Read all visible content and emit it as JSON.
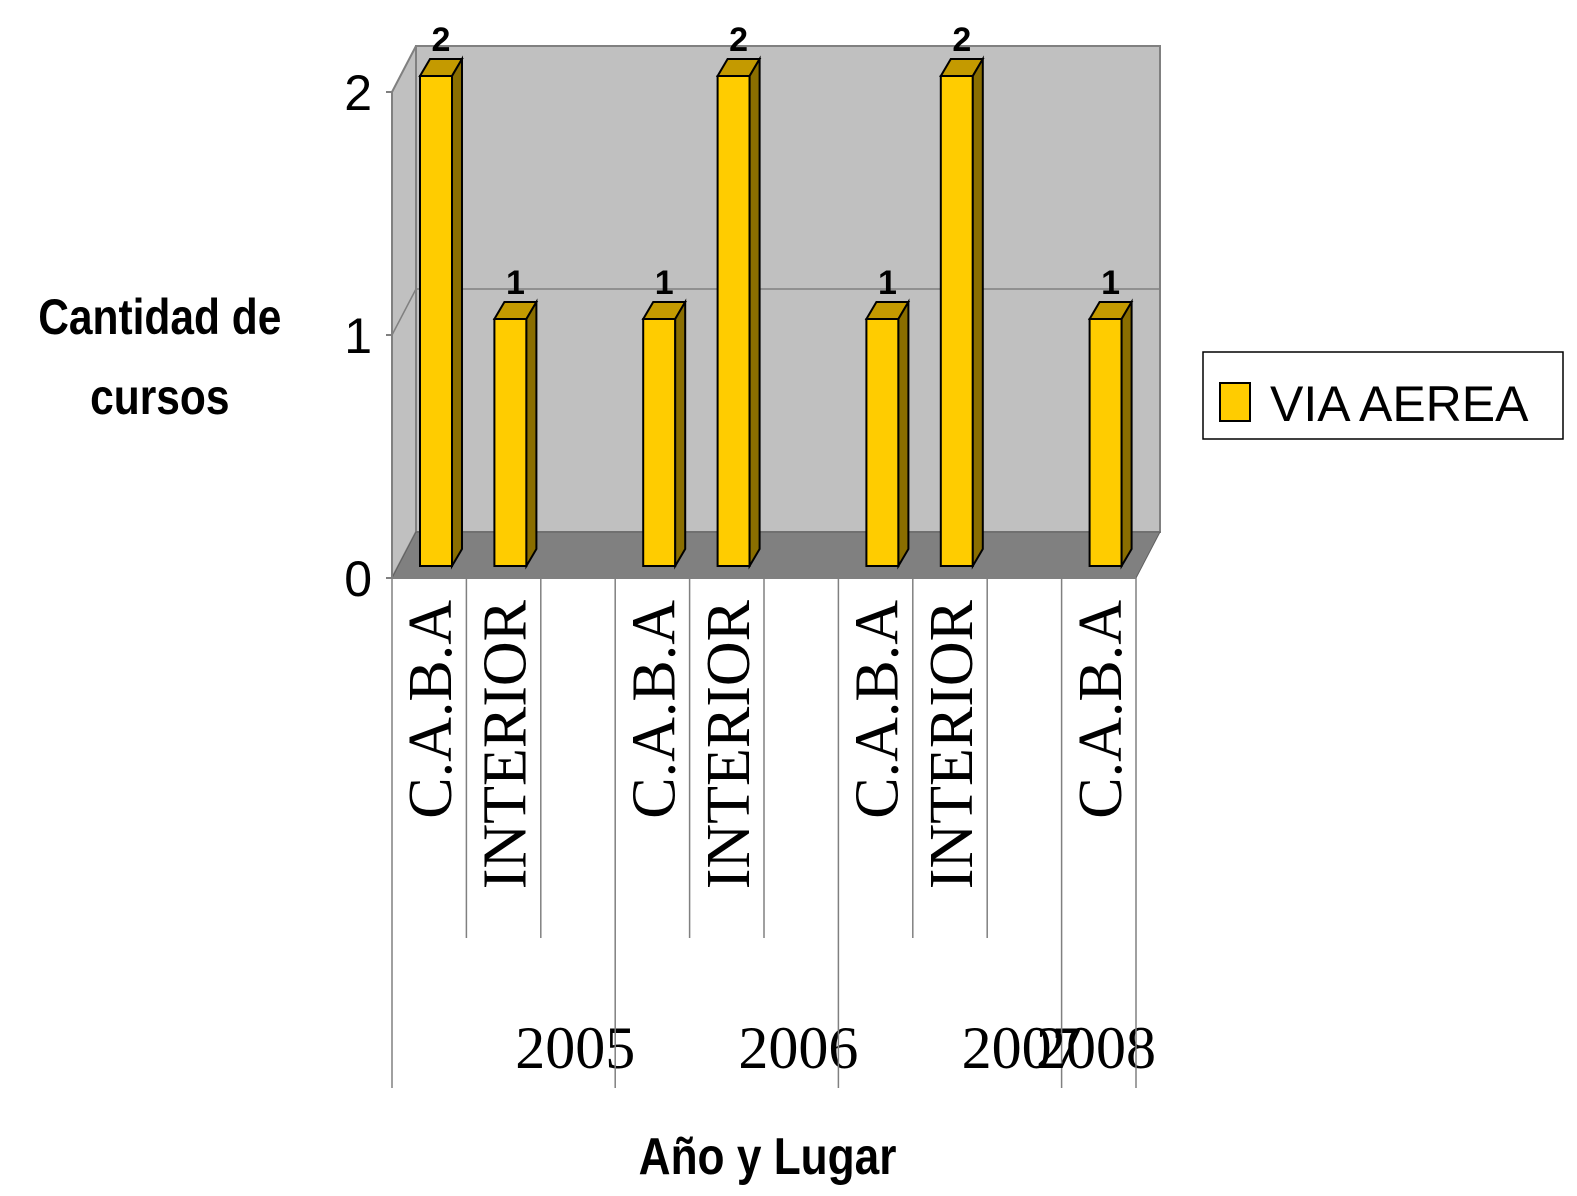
{
  "chart_data": {
    "type": "bar",
    "style": "3d-column",
    "ylabel": [
      "Cantidad de",
      "cursos"
    ],
    "xlabel": "Año y Lugar",
    "ylim": [
      0,
      2
    ],
    "yticks": [
      "0",
      "1",
      "2"
    ],
    "grid": true,
    "legend_position": "right",
    "groups": [
      {
        "label": "2005",
        "categories": [
          "C.A.B.A",
          "INTERIOR"
        ]
      },
      {
        "label": "2006",
        "categories": [
          "C.A.B.A",
          "INTERIOR"
        ]
      },
      {
        "label": "2007",
        "categories": [
          "C.A.B.A",
          "INTERIOR"
        ]
      },
      {
        "label": "2008",
        "categories": [
          "C.A.B.A"
        ]
      }
    ],
    "series": [
      {
        "name": "VIA AEREA",
        "values": [
          2,
          1,
          1,
          2,
          1,
          2,
          1
        ],
        "color": "#FFCC00"
      }
    ],
    "data_labels": [
      "2",
      "1",
      "1",
      "2",
      "1",
      "2",
      "1"
    ]
  }
}
